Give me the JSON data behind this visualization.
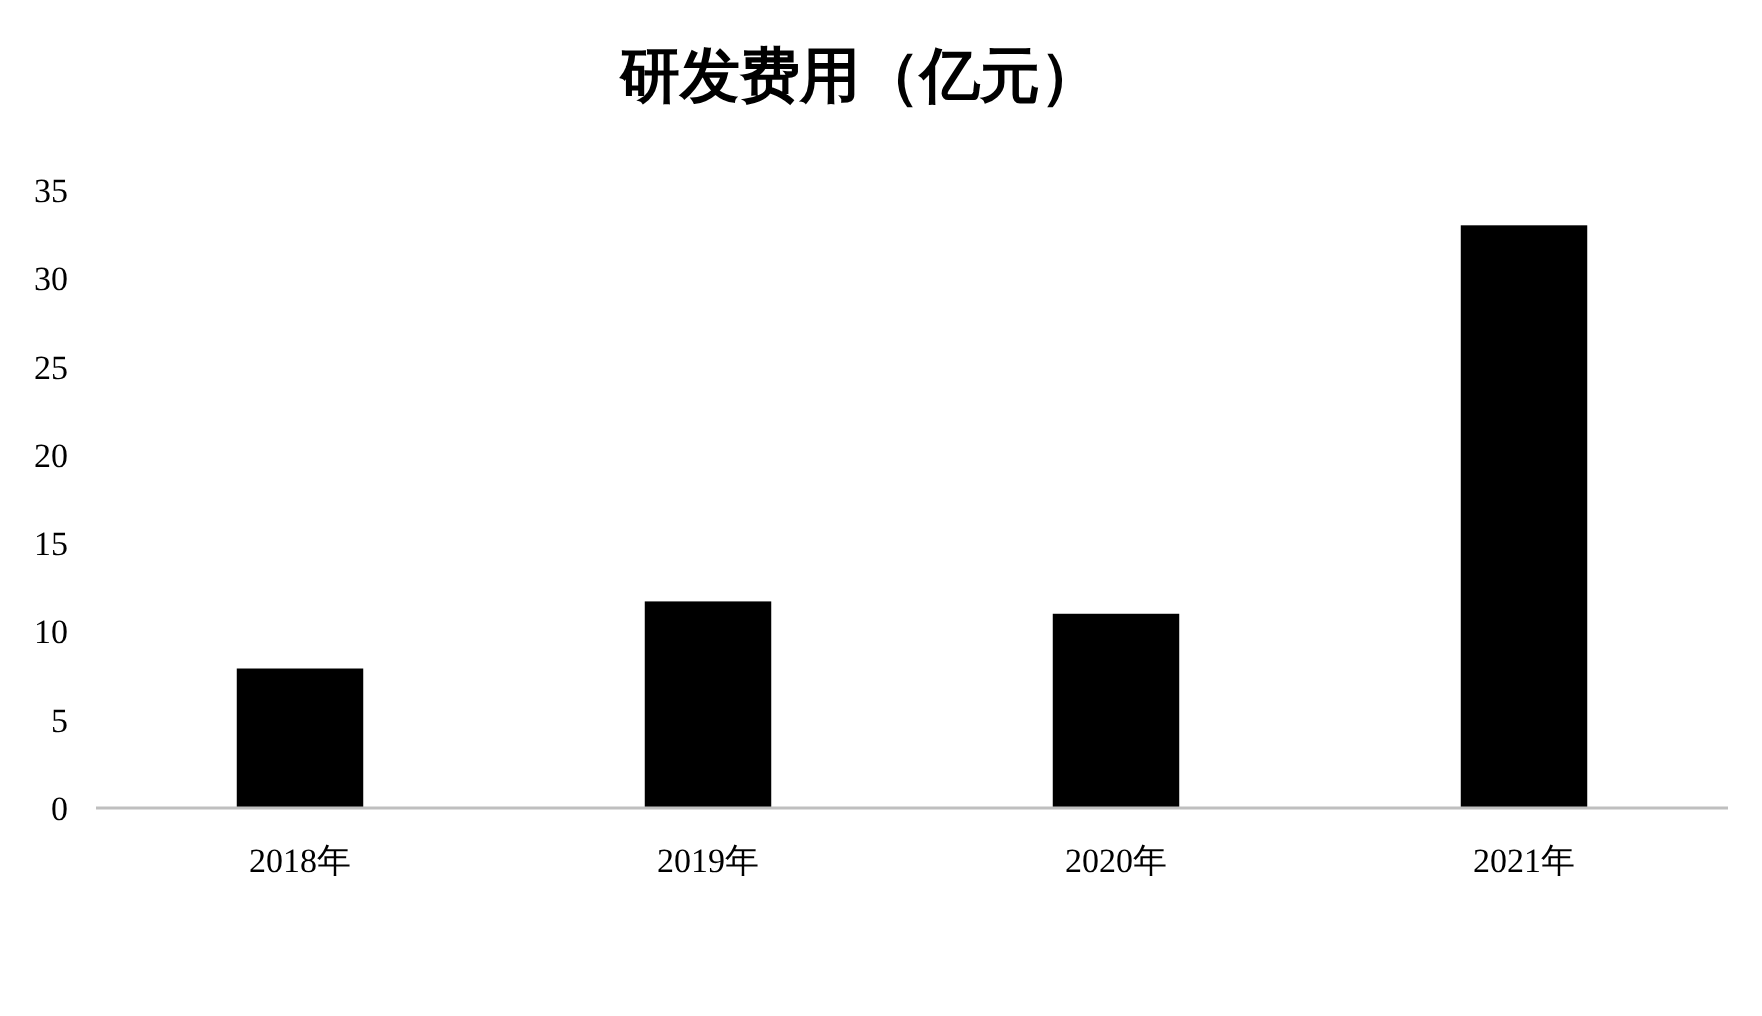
{
  "chart_data": {
    "type": "bar",
    "title": "研发费用（亿元）",
    "categories": [
      "2018年",
      "2019年",
      "2020年",
      "2021年"
    ],
    "values": [
      7.9,
      11.7,
      11.0,
      33.0
    ],
    "color": "#000000",
    "ylim": [
      0,
      35
    ],
    "yticks": [
      0,
      5,
      10,
      15,
      20,
      25,
      30,
      35
    ],
    "grid": false
  }
}
